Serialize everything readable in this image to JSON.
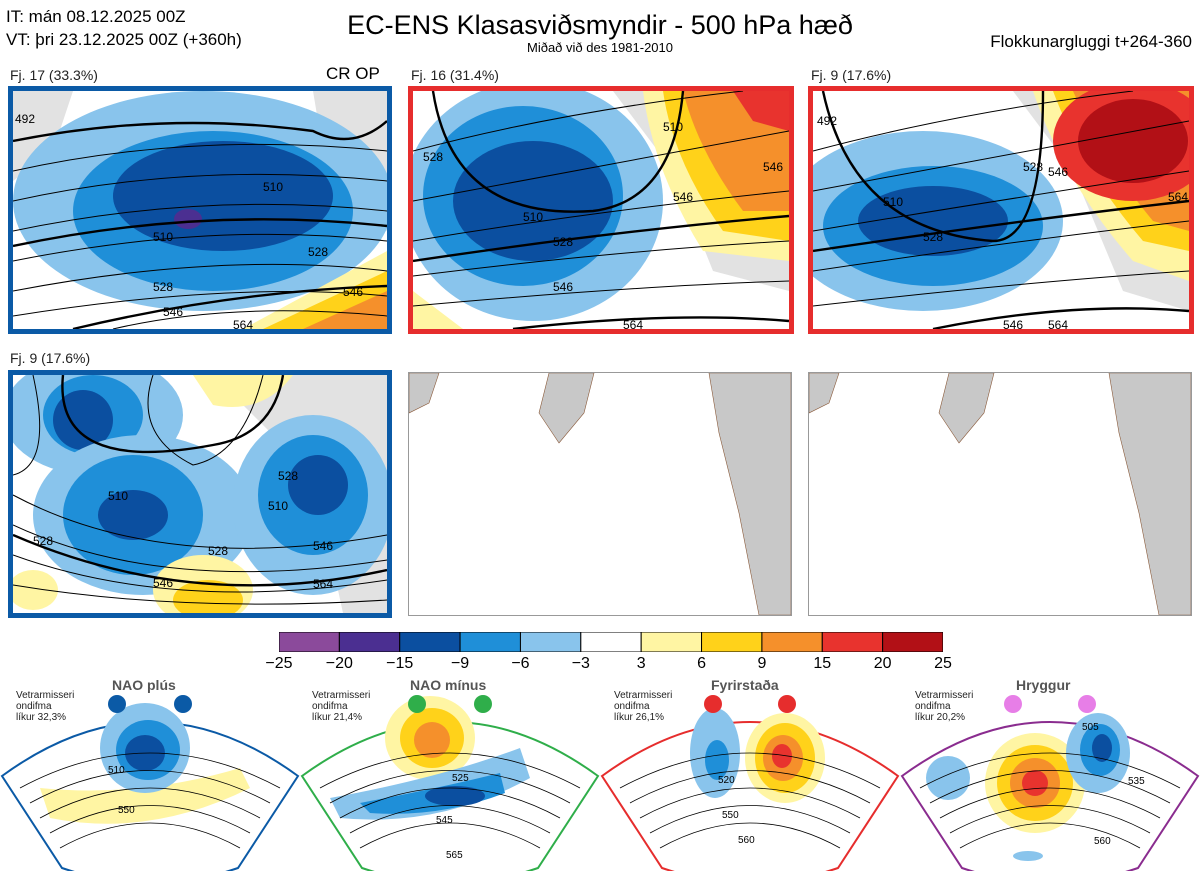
{
  "header": {
    "it_line": "IT: mán 08.12.2025 00Z",
    "vt_line": "VT: þri 23.12.2025 00Z  (+360h)",
    "title": "EC-ENS Klasasviðsmyndir - 500 hPa hæð",
    "subtitle": "Miðað við des 1981-2010",
    "window": "Flokkunargluggi t+264-360"
  },
  "cr_op_label": "CR OP",
  "colors": {
    "blue_frame": "#0b5aa6",
    "red_frame": "#e62d2d",
    "green_frame": "#2fae4a",
    "purple_frame": "#8a2c8f",
    "land": "#c8c8c8",
    "coast": "#8a5a3a"
  },
  "panels": [
    {
      "label": "Fj. 17 (33.3%)",
      "frame": "blue"
    },
    {
      "label": "Fj. 16 (31.4%)",
      "frame": "red"
    },
    {
      "label": "Fj. 9 (17.6%)",
      "frame": "red"
    },
    {
      "label": "Fj. 9 (17.6%)",
      "frame": "blue"
    }
  ],
  "contour_labels": [
    [
      "492",
      "510",
      "510",
      "528",
      "546",
      "546",
      "564",
      "528"
    ],
    [
      "528",
      "510",
      "528",
      "546",
      "546",
      "546",
      "564",
      "510"
    ],
    [
      "492",
      "510",
      "528",
      "528",
      "546",
      "546",
      "564",
      "564"
    ],
    [
      "510",
      "528",
      "528",
      "546",
      "510",
      "546",
      "564",
      "528"
    ]
  ],
  "colorbar": {
    "ticks": [
      "−25",
      "−20",
      "−15",
      "−9",
      "−6",
      "−3",
      "3",
      "6",
      "9",
      "15",
      "20",
      "25"
    ],
    "colors": [
      "#8b4a9b",
      "#4b2f91",
      "#0b4fa0",
      "#1f8fd8",
      "#89c4ec",
      "#ffffff",
      "#fff5a3",
      "#ffd21a",
      "#f5902b",
      "#e8332e",
      "#b21016"
    ]
  },
  "chart_data": {
    "type": "heatmap",
    "title": "EC-ENS Klasasviðsmyndir - 500 hPa hæð",
    "subtitle": "Miðað við des 1981-2010",
    "legend": {
      "ticks": [
        -25,
        -20,
        -15,
        -9,
        -6,
        -3,
        3,
        6,
        9,
        15,
        20,
        25
      ]
    },
    "clusters": [
      {
        "label": "Fj. 17 (33.3%)",
        "regime": "NAO plús",
        "members": 17,
        "percent": 33.3
      },
      {
        "label": "Fj. 16 (31.4%)",
        "regime": "Fyrirstaða",
        "members": 16,
        "percent": 31.4
      },
      {
        "label": "Fj. 9 (17.6%)",
        "regime": "Fyrirstaða",
        "members": 9,
        "percent": 17.6
      },
      {
        "label": "Fj. 9 (17.6%)",
        "regime": "NAO plús",
        "members": 9,
        "percent": 17.6
      }
    ]
  },
  "regimes": [
    {
      "name": "NAO plús",
      "small1": "Vetrarmisseri",
      "small2": "ondifma",
      "small3": "líkur 32,3%",
      "contours": [
        "510",
        "550"
      ],
      "frame": "blue"
    },
    {
      "name": "NAO mínus",
      "small1": "Vetrarmisseri",
      "small2": "ondifma",
      "small3": "líkur 21,4%",
      "contours": [
        "525",
        "545",
        "565"
      ],
      "frame": "green"
    },
    {
      "name": "Fyrirstaða",
      "small1": "Vetrarmisseri",
      "small2": "ondifma",
      "small3": "líkur 26,1%",
      "contours": [
        "520",
        "550",
        "560"
      ],
      "frame": "red"
    },
    {
      "name": "Hryggur",
      "small1": "Vetrarmisseri",
      "small2": "ondifma",
      "small3": "líkur 20,2%",
      "contours": [
        "505",
        "535",
        "560"
      ],
      "frame": "purple"
    }
  ]
}
